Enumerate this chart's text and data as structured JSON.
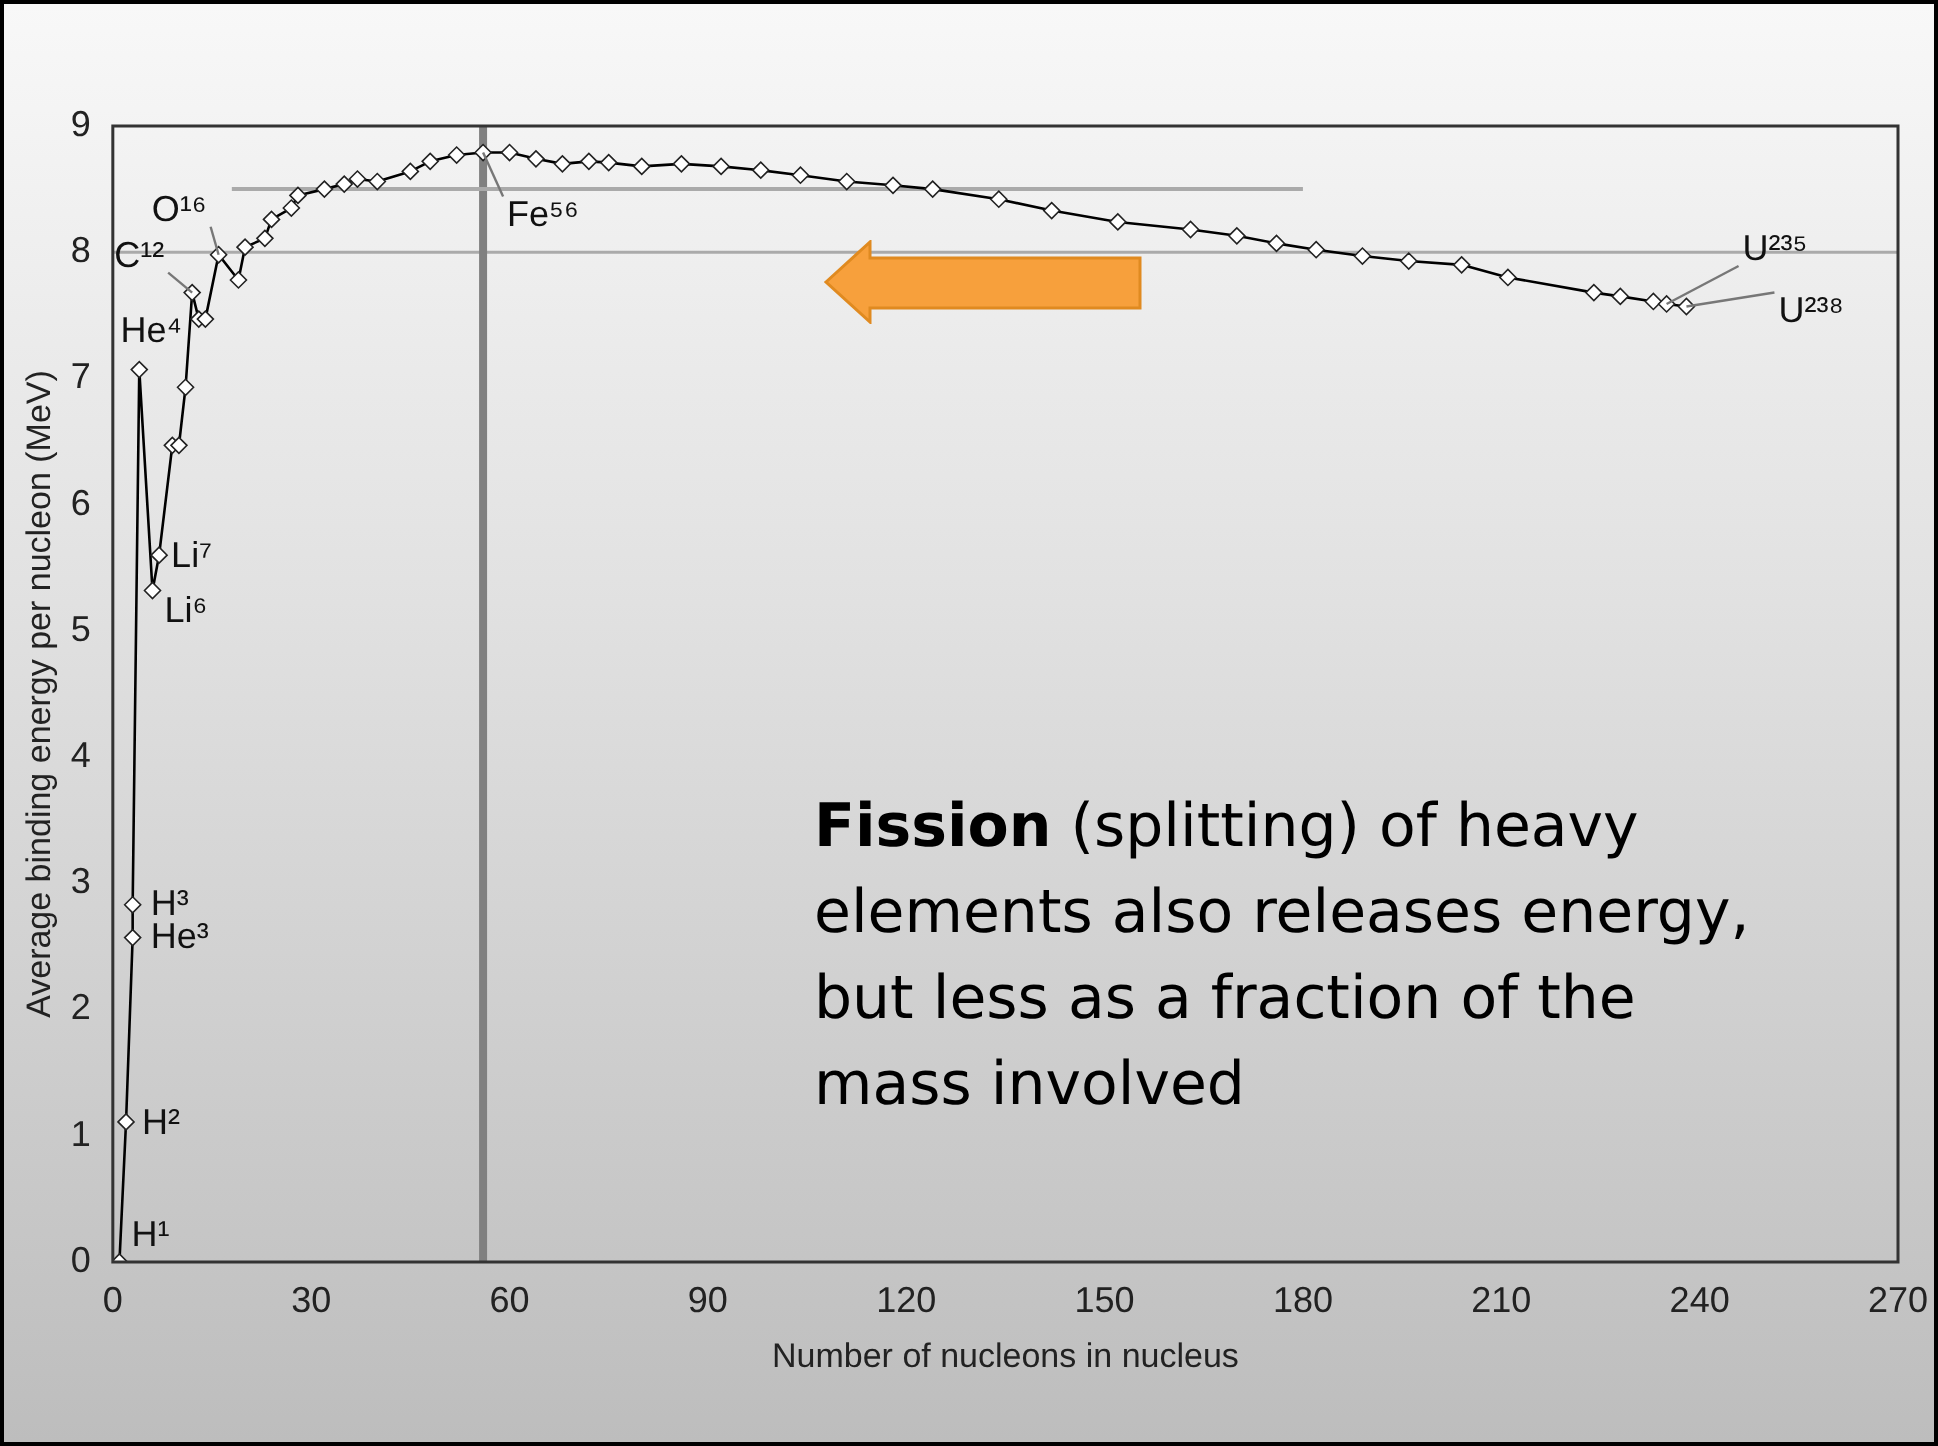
{
  "chart_data": {
    "type": "line",
    "xlabel": "Number of nucleons in nucleus",
    "ylabel": "Average binding energy per nucleon (MeV)",
    "xlim": [
      0,
      270
    ],
    "xticks": [
      0,
      30,
      60,
      90,
      120,
      150,
      180,
      210,
      240,
      270
    ],
    "ylim": [
      0,
      9
    ],
    "yticks": [
      0,
      1,
      2,
      3,
      4,
      5,
      6,
      7,
      8,
      9
    ],
    "grid": false,
    "legend": false,
    "series": [
      {
        "type": "line",
        "color": "#000000",
        "marker": "diamond",
        "x": [
          1,
          2,
          3,
          3,
          4,
          6,
          7,
          9,
          10,
          11,
          12,
          13,
          14,
          16,
          19,
          20,
          23,
          24,
          27,
          28,
          32,
          35,
          37,
          40,
          45,
          48,
          52,
          56,
          60,
          64,
          68,
          72,
          75,
          80,
          86,
          92,
          98,
          104,
          111,
          118,
          124,
          134,
          142,
          152,
          163,
          170,
          176,
          182,
          189,
          196,
          204,
          211,
          224,
          228,
          233,
          235,
          238
        ],
        "values": [
          0,
          1.11,
          2.57,
          2.83,
          7.07,
          5.32,
          5.6,
          6.47,
          6.47,
          6.93,
          7.68,
          7.47,
          7.47,
          7.98,
          7.78,
          8.04,
          8.11,
          8.26,
          8.35,
          8.45,
          8.5,
          8.54,
          8.58,
          8.56,
          8.64,
          8.72,
          8.77,
          8.79,
          8.79,
          8.74,
          8.7,
          8.72,
          8.71,
          8.68,
          8.7,
          8.68,
          8.65,
          8.61,
          8.56,
          8.53,
          8.5,
          8.42,
          8.33,
          8.24,
          8.18,
          8.13,
          8.07,
          8.02,
          7.97,
          7.93,
          7.9,
          7.8,
          7.68,
          7.65,
          7.61,
          7.59,
          7.57
        ]
      },
      {
        "type": "line",
        "color": "#aaaaaa",
        "marker": "none",
        "x": [
          18,
          180
        ],
        "values": [
          8.5,
          8.5
        ]
      }
    ],
    "ref_lines": [
      {
        "axis": "y",
        "value": 8,
        "color": "#aaaaaa"
      },
      {
        "axis": "x",
        "value": 56,
        "color": "#808080"
      }
    ],
    "annotations": [
      {
        "text": "H¹",
        "x": 1,
        "y": 0
      },
      {
        "text": "H²",
        "x": 2,
        "y": 1.11
      },
      {
        "text": "H³",
        "x": 3,
        "y": 2.83
      },
      {
        "text": "He³",
        "x": 3,
        "y": 2.57
      },
      {
        "text": "He⁴",
        "x": 4,
        "y": 7.07
      },
      {
        "text": "Li⁷",
        "x": 7,
        "y": 5.6
      },
      {
        "text": "Li⁶",
        "x": 6,
        "y": 5.32
      },
      {
        "text": "C¹²",
        "x": 12,
        "y": 7.68
      },
      {
        "text": "O¹⁶",
        "x": 16,
        "y": 7.98
      },
      {
        "text": "Fe⁵⁶",
        "x": 56,
        "y": 8.79
      },
      {
        "text": "U²³⁵",
        "x": 235,
        "y": 7.59
      },
      {
        "text": "U²³⁸",
        "x": 238,
        "y": 7.57
      },
      "Fission (splitting) of heavy elements also releases energy, but less as a fraction of the mass involved"
    ]
  }
}
